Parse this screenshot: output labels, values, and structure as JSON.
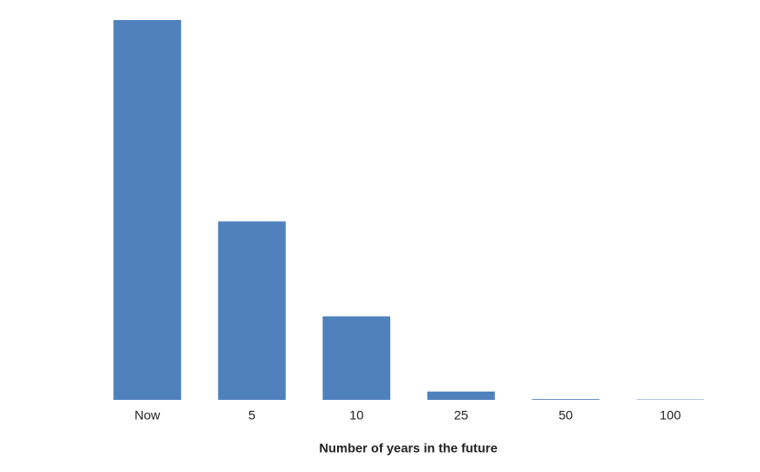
{
  "chart_data": {
    "type": "bar",
    "x_label": "Number of years in the future",
    "categories": [
      "Now",
      "5",
      "10",
      "25",
      "50",
      "100"
    ],
    "values": [
      100,
      47,
      22,
      2.2,
      0.2,
      0.1
    ],
    "color": "#4f81bd"
  }
}
